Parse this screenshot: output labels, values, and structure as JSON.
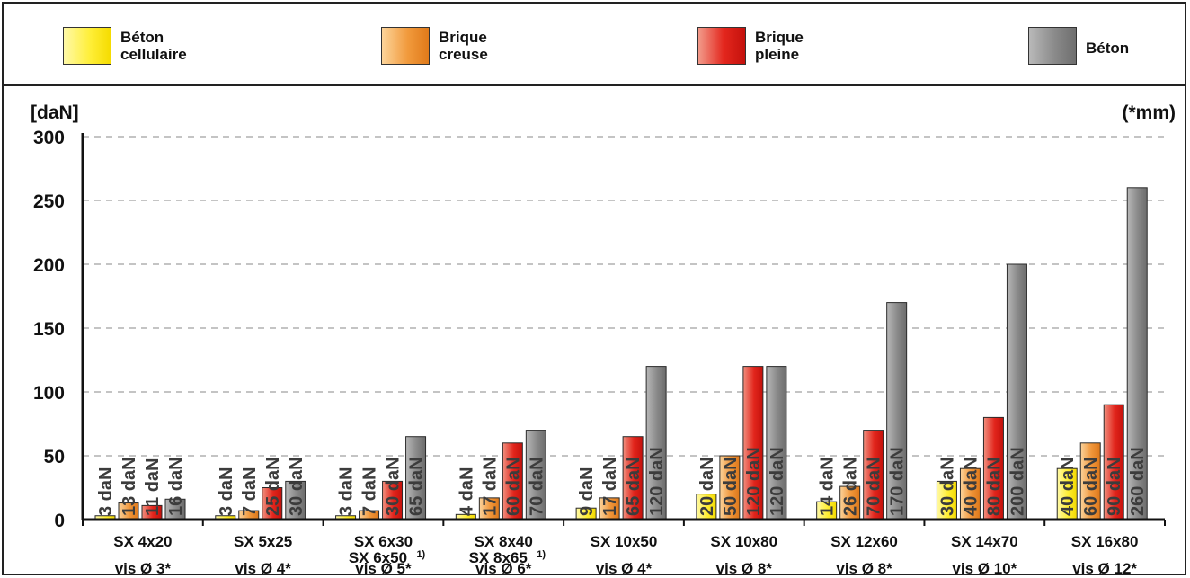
{
  "legend": [
    {
      "label": "Béton\ncellulaire",
      "swatch": "aerated"
    },
    {
      "label": "Brique\ncreuse",
      "swatch": "hollow"
    },
    {
      "label": "Brique\npleine",
      "swatch": "solid"
    },
    {
      "label": "Béton",
      "swatch": "concrete"
    }
  ],
  "colors": {
    "aerated": "#f7e419",
    "hollow": "#ef9638",
    "solid": "#dd2218",
    "concrete": "#858585"
  },
  "chart_data": {
    "type": "bar",
    "ylabel": "[daN]",
    "unit_note": "(*mm)",
    "ylim": [
      0,
      300
    ],
    "yticks": [
      0,
      50,
      100,
      150,
      200,
      250,
      300
    ],
    "grid": "dashed horizontal",
    "categories": [
      {
        "name": "SX 4x20",
        "name2": "",
        "screw": "vis Ø 3*"
      },
      {
        "name": "SX 5x25",
        "name2": "",
        "screw": "vis Ø 4*"
      },
      {
        "name": "SX 6x30",
        "name2": "SX 6x50",
        "footnote": "1)",
        "screw": "vis Ø 5*"
      },
      {
        "name": "SX 8x40",
        "name2": "SX 8x65",
        "footnote": "1)",
        "screw": "vis Ø 6*"
      },
      {
        "name": "SX 10x50",
        "name2": "",
        "screw": "vis Ø 4*"
      },
      {
        "name": "SX 10x80",
        "name2": "",
        "screw": "vis Ø 8*"
      },
      {
        "name": "SX 12x60",
        "name2": "",
        "screw": "vis Ø 8*"
      },
      {
        "name": "SX 14x70",
        "name2": "",
        "screw": "vis Ø 10*"
      },
      {
        "name": "SX 16x80",
        "name2": "",
        "screw": "vis Ø 12*"
      }
    ],
    "series": [
      {
        "name": "Béton cellulaire",
        "color_key": "aerated",
        "values": [
          3,
          3,
          3,
          4,
          9,
          20,
          14,
          30,
          40
        ],
        "labels": [
          "3 daN",
          "3 daN",
          "3 daN",
          "4 daN",
          "9 daN",
          "20 daN",
          "14 daN",
          "30 daN",
          "40 daN"
        ]
      },
      {
        "name": "Brique creuse",
        "color_key": "hollow",
        "values": [
          13,
          7,
          7,
          17,
          17,
          50,
          26,
          40,
          60
        ],
        "labels": [
          "13 daN",
          "7 daN",
          "7 daN",
          "17 daN",
          "17 daN",
          "50 daN",
          "26 daN",
          "40 daN",
          "60 daN"
        ]
      },
      {
        "name": "Brique pleine",
        "color_key": "solid",
        "values": [
          11,
          25,
          30,
          60,
          65,
          120,
          70,
          80,
          90
        ],
        "labels": [
          "11 daN",
          "25 daN",
          "30 daN",
          "60 daN",
          "65 daN",
          "120 daN",
          "70 daN",
          "80 daN",
          "90 daN"
        ]
      },
      {
        "name": "Béton",
        "color_key": "concrete",
        "values": [
          16,
          30,
          65,
          70,
          120,
          120,
          170,
          200,
          260
        ],
        "labels": [
          "16 daN",
          "30 daN",
          "65 daN",
          "70 daN",
          "120 daN",
          "120 daN",
          "170 daN",
          "200 daN",
          "260 daN"
        ]
      }
    ]
  }
}
